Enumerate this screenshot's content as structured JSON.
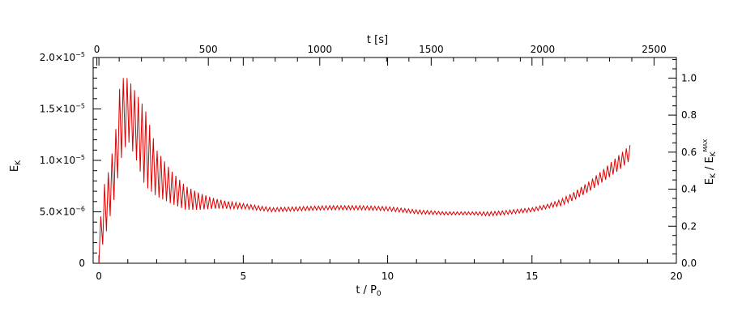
{
  "chart_data": {
    "type": "line",
    "xlabel": "t / P",
    "xlabel_sub": "0",
    "ylabel": "E",
    "ylabel_sub": "K",
    "top_xlabel": "t [s]",
    "right_ylabel": "E",
    "right_ylabel_sub": "K",
    "right_ylabel_mid": " / E",
    "right_ylabel_sub2": "K",
    "right_ylabel_sup2": "MAX",
    "xlim": [
      -0.2,
      20
    ],
    "ylim": [
      0,
      2e-05
    ],
    "top_xlim": [
      -16.8,
      2600
    ],
    "right_ylim": [
      0,
      1.111
    ],
    "x_ticks": [
      "0",
      "5",
      "10",
      "15",
      "20"
    ],
    "top_x_ticks": [
      "0",
      "500",
      "1000",
      "1500",
      "2000",
      "2500"
    ],
    "right_y_ticks": [
      "0.0",
      "0.2",
      "0.4",
      "0.6",
      "0.8",
      "1.0"
    ],
    "y_ticks": [
      {
        "mantissa": "0",
        "exp": ""
      },
      {
        "mantissa": "5.0×10",
        "exp": "−6"
      },
      {
        "mantissa": "1.0×10",
        "exp": "−5"
      },
      {
        "mantissa": "1.5×10",
        "exp": "−5"
      },
      {
        "mantissa": "2.0×10",
        "exp": "−5"
      }
    ],
    "grid": false,
    "series": [
      {
        "color": "#dd0000",
        "envelope": {
          "x": [
            0.0,
            0.1,
            0.3,
            0.55,
            0.75,
            1.0,
            1.3,
            1.6,
            2.0,
            2.5,
            3.0,
            3.5,
            4.0,
            4.5,
            5.0,
            6.0,
            7.0,
            8.0,
            9.0,
            10.0,
            11.0,
            12.0,
            13.0,
            13.5,
            14.0,
            15.0,
            15.5,
            16.0,
            16.5,
            17.0,
            17.5,
            18.0,
            18.4
          ],
          "upper": [
            0.0,
            7e-06,
            8.5e-06,
            1.2e-05,
            1.8e-05,
            1.8e-05,
            1.65e-05,
            1.5e-05,
            1.1e-05,
            9e-06,
            7.5e-06,
            6.8e-06,
            6.3e-06,
            6e-06,
            5.8e-06,
            5.4e-06,
            5.5e-06,
            5.6e-06,
            5.6e-06,
            5.5e-06,
            5.2e-06,
            5e-06,
            5e-06,
            5e-06,
            5.1e-06,
            5.4e-06,
            5.7e-06,
            6.2e-06,
            7e-06,
            8e-06,
            9.2e-06,
            1.05e-05,
            1.15e-05
          ],
          "lower": [
            0.0,
            1.5e-06,
            3.5e-06,
            6.5e-06,
            1e-05,
            1.2e-05,
            1e-05,
            7.5e-06,
            6.5e-06,
            5.8e-06,
            5.2e-06,
            5.2e-06,
            5.3e-06,
            5.3e-06,
            5.3e-06,
            5e-06,
            5.1e-06,
            5.2e-06,
            5.2e-06,
            5.1e-06,
            4.8e-06,
            4.7e-06,
            4.7e-06,
            4.6e-06,
            4.7e-06,
            5e-06,
            5.3e-06,
            5.6e-06,
            6.2e-06,
            7e-06,
            8e-06,
            9e-06,
            1e-05
          ]
        },
        "oscillation_period": 0.13
      }
    ]
  }
}
